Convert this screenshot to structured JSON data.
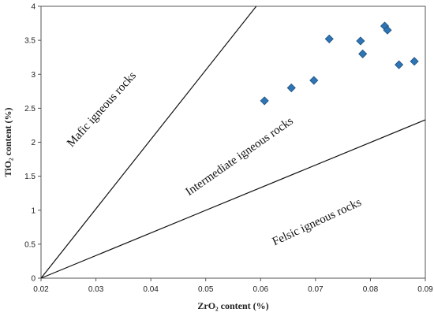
{
  "chart_data": {
    "type": "scatter",
    "title": "",
    "xlabel": "ZrO₂ content (%)",
    "ylabel": "TiO₂ content (%)",
    "xlim": [
      0.02,
      0.09
    ],
    "ylim": [
      0,
      4
    ],
    "x_ticks": [
      "0.02",
      "0.03",
      "0.04",
      "0.05",
      "0.06",
      "0.07",
      "0.08",
      "0.09"
    ],
    "y_ticks": [
      "0",
      "0.5",
      "1",
      "1.5",
      "2",
      "2.5",
      "3",
      "3.5",
      "4"
    ],
    "grid": false,
    "marker": "diamond",
    "marker_color": "#2e75b6",
    "points": [
      {
        "x": 0.0607,
        "y": 2.61
      },
      {
        "x": 0.0656,
        "y": 2.8
      },
      {
        "x": 0.0697,
        "y": 2.91
      },
      {
        "x": 0.0725,
        "y": 3.52
      },
      {
        "x": 0.0782,
        "y": 3.49
      },
      {
        "x": 0.0786,
        "y": 3.3
      },
      {
        "x": 0.0826,
        "y": 3.71
      },
      {
        "x": 0.0831,
        "y": 3.65
      },
      {
        "x": 0.0852,
        "y": 3.14
      },
      {
        "x": 0.088,
        "y": 3.19
      }
    ],
    "boundary_lines": [
      {
        "from": [
          0.02,
          0
        ],
        "to": [
          0.0592,
          4
        ]
      },
      {
        "from": [
          0.02,
          0
        ],
        "to": [
          0.09,
          2.33
        ]
      }
    ],
    "regions": [
      {
        "label": "Mafic igneous rocks",
        "x": 0.0315,
        "y": 2.45
      },
      {
        "label": "Intermediate igneous rocks",
        "x": 0.0565,
        "y": 1.75
      },
      {
        "label": "Felsic igneous rocks",
        "x": 0.0705,
        "y": 0.78
      }
    ]
  }
}
